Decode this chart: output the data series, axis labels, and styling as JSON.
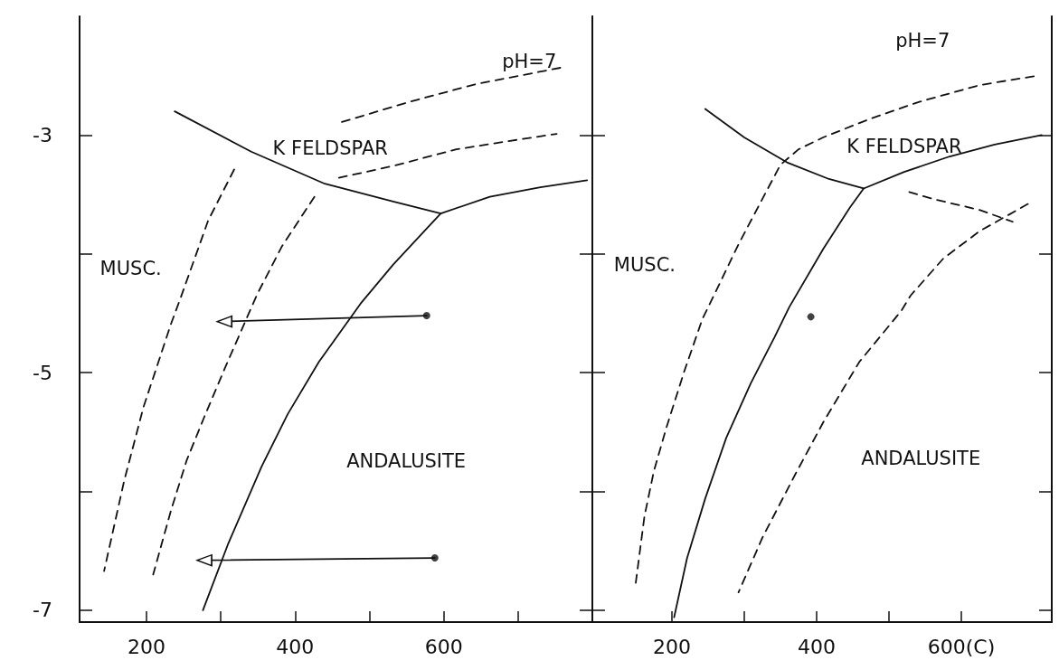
{
  "chart_data": [
    {
      "type": "line",
      "xlim": [
        110,
        800
      ],
      "ylim": [
        -7.1,
        -2.0
      ],
      "xticks": [
        200,
        {
          "value": 300,
          "label": null
        },
        400,
        {
          "value": 500,
          "label": null
        },
        600,
        {
          "value": 700,
          "label": null
        }
      ],
      "yticks": [
        -3,
        {
          "value": -4,
          "label": null
        },
        -5,
        {
          "value": -6,
          "label": null
        },
        -7
      ],
      "annotations": [
        "pH=7",
        "K FELDSPAR",
        "MUSC.",
        "ANDALUSITE"
      ],
      "series": [
        {
          "color": "#111111",
          "line_style": "solid",
          "x": [
            238,
            341,
            440,
            532,
            596,
            662,
            730,
            793
          ],
          "values": [
            -2.8,
            -3.14,
            -3.41,
            -3.56,
            -3.66,
            -3.52,
            -3.44,
            -3.38
          ]
        },
        {
          "color": "#111111",
          "line_style": "solid",
          "x": [
            596,
            532,
            488,
            432,
            390,
            355,
            310,
            276
          ],
          "values": [
            -3.66,
            -4.09,
            -4.42,
            -4.91,
            -5.35,
            -5.79,
            -6.44,
            -7.0
          ]
        },
        {
          "color": "#111111",
          "line_style": "dashed",
          "x": [
            318,
            283,
            246,
            233,
            196,
            170,
            143
          ],
          "values": [
            -3.29,
            -3.72,
            -4.37,
            -4.59,
            -5.29,
            -5.91,
            -6.67
          ]
        },
        {
          "color": "#111111",
          "line_style": "dashed",
          "x": [
            426,
            382,
            349,
            305,
            278,
            254,
            233,
            209
          ],
          "values": [
            -3.52,
            -3.94,
            -4.34,
            -4.97,
            -5.37,
            -5.74,
            -6.16,
            -6.7
          ]
        },
        {
          "color": "#111111",
          "line_style": "dashed",
          "x": [
            463,
            554,
            644,
            760
          ],
          "values": [
            -2.89,
            -2.72,
            -2.57,
            -2.43
          ]
        },
        {
          "color": "#111111",
          "line_style": "dashed",
          "x": [
            459,
            532,
            617,
            699,
            752
          ],
          "values": [
            -3.36,
            -3.26,
            -3.12,
            -3.04,
            -2.99
          ]
        },
        {
          "color": "#111111",
          "line_style": "solid",
          "marker": "triangle",
          "x": [
            577,
            305
          ],
          "values": [
            -4.52,
            -4.57
          ]
        },
        {
          "color": "#111111",
          "line_style": "solid",
          "marker": "triangle",
          "x": [
            588,
            278
          ],
          "values": [
            -6.56,
            -6.58
          ]
        },
        {
          "type": "scatter",
          "color": "#111111",
          "marker": "circle",
          "x": [
            577,
            588
          ],
          "values": [
            -4.52,
            -6.56
          ]
        }
      ]
    },
    {
      "type": "line",
      "xlim": [
        90,
        725
      ],
      "ylim": [
        -7.1,
        -2.0
      ],
      "tick_labels": "x",
      "xticks": [
        200,
        {
          "value": 300,
          "label": null
        },
        400,
        {
          "value": 500,
          "label": null
        },
        {
          "value": 600,
          "label": "600(C)"
        }
      ],
      "yticks": [
        -3,
        -4,
        -5,
        -6,
        -7
      ],
      "annotations": [
        "pH=7",
        "K FELDSPAR",
        "MUSC.",
        "ANDALUSITE"
      ],
      "series": [
        {
          "color": "#111111",
          "line_style": "solid",
          "x": [
            246,
            300,
            359,
            417,
            465,
            521,
            584,
            646,
            711
          ],
          "values": [
            -2.78,
            -3.02,
            -3.23,
            -3.37,
            -3.45,
            -3.31,
            -3.18,
            -3.08,
            -3.0
          ]
        },
        {
          "color": "#111111",
          "line_style": "solid",
          "x": [
            465,
            446,
            409,
            362,
            342,
            309,
            275,
            246,
            221,
            203
          ],
          "values": [
            -3.45,
            -3.61,
            -3.96,
            -4.45,
            -4.7,
            -5.09,
            -5.55,
            -6.06,
            -6.56,
            -7.06
          ]
        },
        {
          "color": "#111111",
          "line_style": "dashed",
          "x": [
            150,
            162,
            175,
            192,
            217,
            242,
            262,
            292,
            330,
            350,
            375,
            409,
            471,
            542,
            625,
            705
          ],
          "values": [
            -6.77,
            -6.21,
            -5.83,
            -5.47,
            -4.99,
            -4.55,
            -4.3,
            -3.92,
            -3.48,
            -3.25,
            -3.12,
            -3.02,
            -2.87,
            -2.72,
            -2.58,
            -2.5
          ]
        },
        {
          "color": "#111111",
          "line_style": "dashed",
          "x": [
            528,
            562,
            625,
            671
          ],
          "values": [
            -3.48,
            -3.54,
            -3.63,
            -3.73
          ]
        },
        {
          "color": "#111111",
          "line_style": "dashed",
          "x": [
            692,
            625,
            575,
            530,
            517,
            459,
            409,
            371,
            325,
            292
          ],
          "values": [
            -3.58,
            -3.81,
            -4.04,
            -4.35,
            -4.48,
            -4.91,
            -5.42,
            -5.85,
            -6.39,
            -6.85
          ]
        },
        {
          "type": "scatter",
          "color": "#111111",
          "marker": "circle",
          "x": [
            392
          ],
          "values": [
            -4.53
          ]
        }
      ]
    }
  ]
}
